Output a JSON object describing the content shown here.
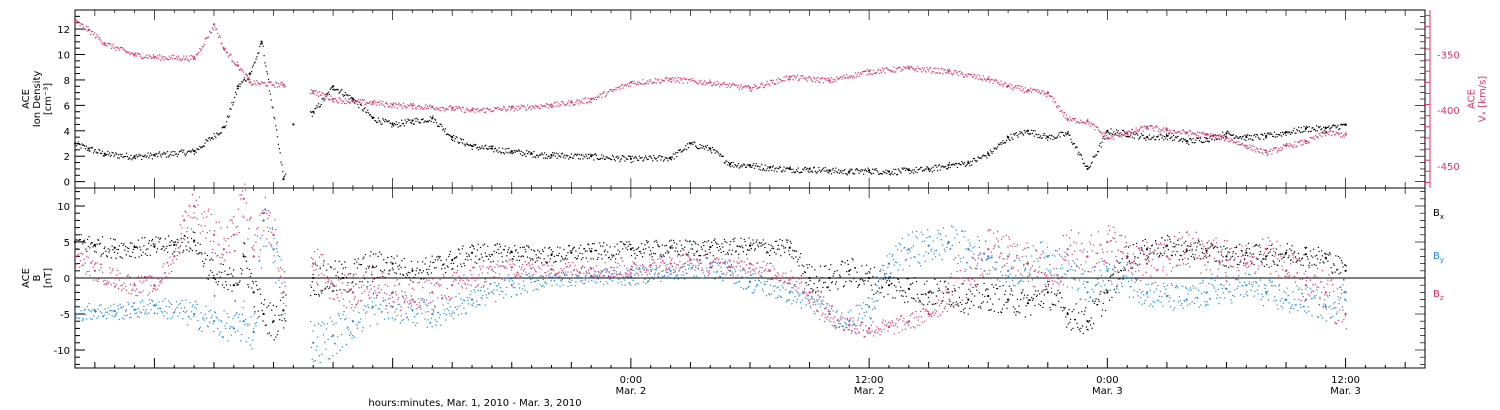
{
  "chart_data": [
    {
      "type": "scatter",
      "panel": "top",
      "ylabel_left": [
        "ACE",
        "Ion Density",
        "[cm⁻³]"
      ],
      "ylabel_right": [
        "ACE",
        "Vₓ [km/s]"
      ],
      "ylim_left": [
        -0.5,
        13.5
      ],
      "yticks_left": [
        "0",
        "2",
        "4",
        "6",
        "8",
        "10",
        "12"
      ],
      "ylim_right": [
        -470,
        -310
      ],
      "yticks_right": [
        "-350",
        "-400",
        "-450"
      ],
      "xlim_hours": [
        -28,
        40
      ],
      "series": [
        {
          "axis": "left",
          "color": "#000000",
          "x": [
            -28,
            -27.3,
            -26.5,
            -25,
            -24,
            -22,
            -20.5,
            -19.8,
            -19.2,
            -18.6,
            -17.5,
            -17,
            -16,
            -15,
            -14,
            -13,
            -12,
            -11,
            -10,
            -9,
            -8,
            -7,
            -6,
            -5,
            -4,
            -2,
            0,
            2,
            3,
            4,
            5,
            6,
            7,
            8,
            9,
            10,
            11,
            12,
            13,
            14,
            15,
            16,
            17,
            18,
            19,
            20,
            21,
            22,
            23,
            24,
            25,
            26,
            27,
            28,
            29,
            30,
            31,
            32,
            33,
            34,
            35,
            36
          ],
          "y": [
            3,
            2.6,
            2.2,
            2,
            2.1,
            2.4,
            4.3,
            7.5,
            8.5,
            11,
            0.2,
            4.5,
            5.5,
            7.5,
            6.5,
            5,
            4.5,
            4.8,
            5,
            3.5,
            2.8,
            2.6,
            2.4,
            2.2,
            2.1,
            2,
            1.8,
            1.9,
            3,
            2.6,
            1.4,
            1.3,
            1.1,
            1,
            1,
            0.9,
            0.8,
            0.9,
            0.8,
            0.9,
            1,
            1.3,
            1.5,
            2.2,
            3.5,
            4,
            3.5,
            3.8,
            1,
            4,
            3.8,
            3.5,
            3.6,
            3.2,
            3.4,
            3.8,
            3.5,
            3.6,
            3.9,
            4.2,
            4.2,
            4.5
          ]
        },
        {
          "axis": "right",
          "color": "#dd3366",
          "x": [
            -28,
            -27.3,
            -26.5,
            -25,
            -24,
            -22,
            -21,
            -20.5,
            -19.8,
            -19.2,
            -17.5,
            -16,
            -15,
            -14,
            -13,
            -12,
            -11,
            -10,
            -9,
            -8,
            -6,
            -4,
            -3,
            -2,
            0,
            2,
            4,
            6,
            8,
            10,
            12,
            14,
            16,
            18,
            19,
            20,
            21,
            22,
            23,
            24,
            25,
            26,
            27,
            28,
            29,
            30,
            31,
            32,
            33,
            34,
            35,
            36
          ],
          "y": [
            -320,
            -328,
            -340,
            -350,
            -352,
            -353,
            -323,
            -345,
            -360,
            -375,
            -377,
            -383,
            -390,
            -392,
            -393,
            -395,
            -396,
            -397,
            -398,
            -400,
            -398,
            -395,
            -393,
            -390,
            -375,
            -372,
            -375,
            -380,
            -370,
            -373,
            -365,
            -362,
            -365,
            -372,
            -378,
            -382,
            -385,
            -408,
            -410,
            -425,
            -420,
            -415,
            -418,
            -420,
            -422,
            -425,
            -432,
            -438,
            -432,
            -428,
            -420,
            -422
          ]
        }
      ]
    },
    {
      "type": "scatter",
      "panel": "bottom",
      "ylabel_left": [
        "ACE",
        "B",
        "[nT]"
      ],
      "ylim": [
        -12.5,
        12.5
      ],
      "yticks": [
        "10",
        "5",
        "0",
        "-5",
        "-10"
      ],
      "xlim_hours": [
        -28,
        40
      ],
      "legend": "right",
      "xtick_labels": [
        [
          "0:00",
          "Mar. 2"
        ],
        [
          "12:00",
          "Mar. 2"
        ],
        [
          "0:00",
          "Mar. 3"
        ],
        [
          "12:00",
          "Mar. 3"
        ]
      ],
      "xtick_hours": [
        0,
        12,
        24,
        36
      ],
      "xlabel": "hours:minutes, Mar.  1, 2010 - Mar.  3, 2010",
      "series": [
        {
          "name": "Bx",
          "label_main": "B",
          "label_sub": "x",
          "color": "#000000",
          "x": [
            -28,
            -27,
            -26,
            -25,
            -24,
            -23,
            -22,
            -21,
            -20,
            -19.5,
            -19,
            -18.5,
            -18,
            -17.5,
            -16,
            -14.5,
            -13,
            -12,
            -11,
            -9,
            -8,
            -6,
            -4,
            -3,
            -2,
            0,
            2,
            4,
            6,
            8,
            9,
            10,
            11,
            12,
            13,
            14,
            15,
            16,
            17,
            18,
            19,
            20,
            21,
            22,
            23,
            24,
            25,
            26,
            27,
            28,
            29,
            30,
            31,
            32,
            33,
            34,
            35,
            36
          ],
          "y": [
            5,
            4.6,
            4.2,
            4.3,
            4.4,
            4.6,
            5.2,
            0,
            -1,
            3,
            -2,
            -5,
            -6,
            -4.5,
            0,
            0,
            1.5,
            2,
            1,
            2.5,
            3.5,
            3.6,
            3.2,
            3.5,
            3.7,
            4,
            4.2,
            4.3,
            4.5,
            4.2,
            0,
            0,
            1,
            0,
            -1,
            -1.5,
            -2,
            -2,
            -3,
            -2.5,
            -3,
            -3.5,
            -2,
            -5,
            -6,
            -2,
            3,
            4,
            4.5,
            3.8,
            3.8,
            3,
            3.5,
            3,
            3.5,
            3.3,
            2.8,
            1
          ],
          "range": [
            1.4,
            1.4,
            1.4,
            1.4,
            1.4,
            1.4,
            1.4,
            2.5,
            2.5,
            2.5,
            2.5,
            2.5,
            2.5,
            2.5,
            2.5,
            2.5,
            2.5,
            1.5,
            1.5,
            1.5,
            1.5,
            1.2,
            1.2,
            1.2,
            1.2,
            1.2,
            1.2,
            1.2,
            1.2,
            1.2,
            2,
            2,
            2,
            2,
            2,
            2,
            2,
            2,
            2,
            2,
            2,
            2,
            2,
            2,
            2,
            2,
            2,
            1.5,
            1.5,
            1.5,
            1.5,
            1.5,
            1.5,
            1.5,
            1.5,
            1.5,
            1.5,
            1.5
          ]
        },
        {
          "name": "By",
          "label_main": "B",
          "label_sub": "y",
          "color": "#1e88d8",
          "x": [
            -28,
            -27,
            -26,
            -25,
            -24,
            -22,
            -21,
            -20,
            -19.5,
            -19,
            -18.5,
            -18,
            -17.5,
            -16,
            -15,
            -14,
            -13,
            -12,
            -11,
            -10,
            -8,
            -6,
            -4,
            -2,
            0,
            2,
            4,
            5,
            6,
            8,
            10,
            11,
            12,
            13,
            14,
            15,
            16,
            17,
            18,
            19,
            20,
            21,
            22,
            23,
            24,
            25,
            26,
            27,
            28,
            29,
            30,
            31,
            32,
            33,
            34,
            35,
            36
          ],
          "y": [
            -4.8,
            -4.5,
            -4.6,
            -4.4,
            -3.8,
            -5,
            -6,
            -7,
            -6,
            -7.5,
            8,
            4,
            -2,
            -9,
            -8,
            -6,
            -4,
            -4,
            -4.5,
            -5,
            -3,
            -1,
            0,
            0.3,
            0.2,
            1,
            1.5,
            1,
            -0.5,
            -2,
            -5,
            -6,
            -4,
            2,
            4,
            4.5,
            5,
            4,
            3,
            1,
            2,
            3,
            1,
            -2,
            1,
            0,
            -2,
            -2.5,
            -3,
            -2,
            -1.5,
            -1,
            -2,
            -3,
            -3,
            -4,
            -2
          ],
          "range": [
            1.2,
            1.2,
            1.2,
            1.2,
            1.2,
            2,
            2,
            2,
            3,
            3,
            4,
            4,
            4,
            3,
            3,
            2.5,
            2.5,
            2,
            2,
            2,
            1.5,
            1.5,
            1.2,
            1.2,
            1.2,
            1.2,
            1.5,
            1.5,
            1.5,
            1.5,
            1.5,
            1.5,
            2,
            2,
            2.5,
            2.5,
            2.5,
            2.5,
            2.5,
            2.5,
            2.5,
            2.5,
            2.5,
            2.5,
            2.5,
            2.5,
            2,
            2,
            2,
            2,
            2,
            2,
            2,
            2,
            2,
            2,
            2
          ]
        },
        {
          "name": "Bz",
          "label_main": "B",
          "label_sub": "z",
          "color": "#dd3366",
          "x": [
            -28,
            -27,
            -26,
            -25,
            -24,
            -23,
            -22.5,
            -22,
            -21,
            -20.5,
            -20,
            -19.5,
            -19,
            -18.5,
            -18,
            -17.5,
            -16,
            -15,
            -14,
            -13,
            -12,
            -11,
            -10,
            -9,
            -8,
            -6,
            -4,
            -2,
            0,
            1,
            2,
            3,
            4,
            5,
            6,
            7,
            8,
            9,
            10,
            11,
            12,
            13,
            14,
            15,
            16,
            17,
            18,
            19,
            20,
            21,
            22,
            23,
            24,
            25,
            26,
            27,
            28,
            29,
            30,
            31,
            32,
            33,
            34,
            35,
            36
          ],
          "y": [
            3,
            1,
            0,
            -1,
            -1,
            3,
            8,
            10,
            6,
            4,
            6,
            11,
            3,
            9,
            6,
            -2,
            2,
            -1,
            -2,
            0,
            -2,
            -3,
            -2,
            -1,
            0,
            1.5,
            1.2,
            1.3,
            1.2,
            1.8,
            2,
            2.5,
            2,
            1.5,
            2,
            1,
            0,
            -2,
            -5,
            -6.5,
            -7,
            -6.8,
            -6,
            -5,
            -2,
            0,
            4,
            3,
            2,
            0,
            4,
            3,
            5,
            3,
            2,
            3,
            4,
            3.5,
            2.5,
            2,
            4,
            1,
            -1,
            -2,
            -5
          ],
          "range": [
            1.4,
            1.4,
            1.4,
            1.4,
            1.4,
            1.4,
            2.5,
            2.5,
            3,
            3,
            3,
            3,
            3,
            3,
            3,
            3,
            3,
            2.5,
            2.5,
            2.5,
            2.5,
            2.5,
            2.5,
            2,
            2,
            1.2,
            1.2,
            1.2,
            1.2,
            1.2,
            1.2,
            1.2,
            1.2,
            1.2,
            1.2,
            1.2,
            1.2,
            1.5,
            1.5,
            1.5,
            1.2,
            1.2,
            1.2,
            1.2,
            2.5,
            2.5,
            3,
            3,
            3,
            3,
            3,
            3,
            3,
            3,
            3,
            3,
            3,
            3,
            3,
            3,
            3,
            3,
            3,
            3,
            3
          ]
        }
      ]
    }
  ]
}
